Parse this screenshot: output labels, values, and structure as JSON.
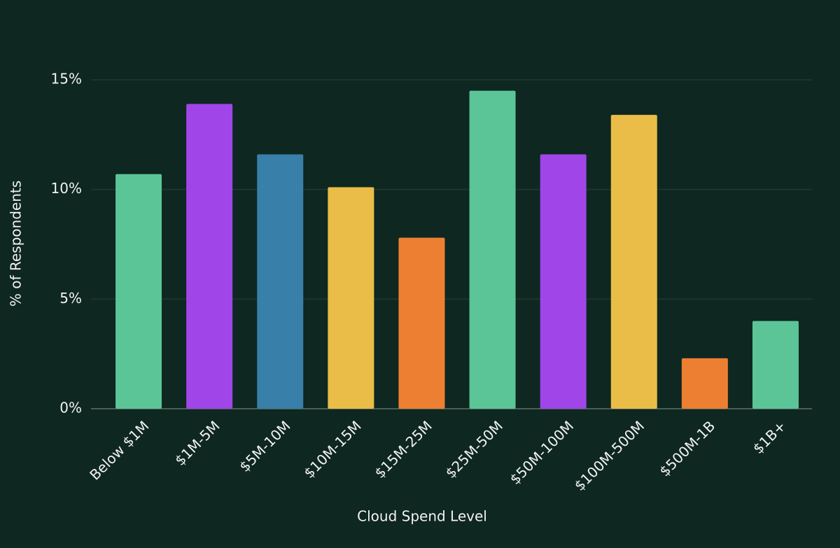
{
  "chart_data": {
    "type": "bar",
    "x_label": "Cloud Spend Level",
    "y_label": "% of Respondents",
    "categories": [
      "Below $1M",
      "$1M-5M",
      "$5M-10M",
      "$10M-15M",
      "$15M-25M",
      "$25M-50M",
      "$50M-100M",
      "$100M-500M",
      "$500M-1B",
      "$1B+"
    ],
    "values": [
      10.7,
      13.9,
      11.6,
      10.1,
      7.8,
      14.5,
      11.6,
      13.4,
      2.3,
      4.0
    ],
    "colors": [
      "#5bc597",
      "#a046e8",
      "#387fa9",
      "#e9bd47",
      "#ed7f33",
      "#5bc597",
      "#a046e8",
      "#e9bd47",
      "#ed7f33",
      "#5bc597"
    ],
    "ylim": [
      0,
      15
    ],
    "yticks": [
      {
        "value": 0,
        "label": "0%"
      },
      {
        "value": 5,
        "label": "5%"
      },
      {
        "value": 10,
        "label": "10%"
      },
      {
        "value": 15,
        "label": "15%"
      }
    ],
    "grid": true
  }
}
